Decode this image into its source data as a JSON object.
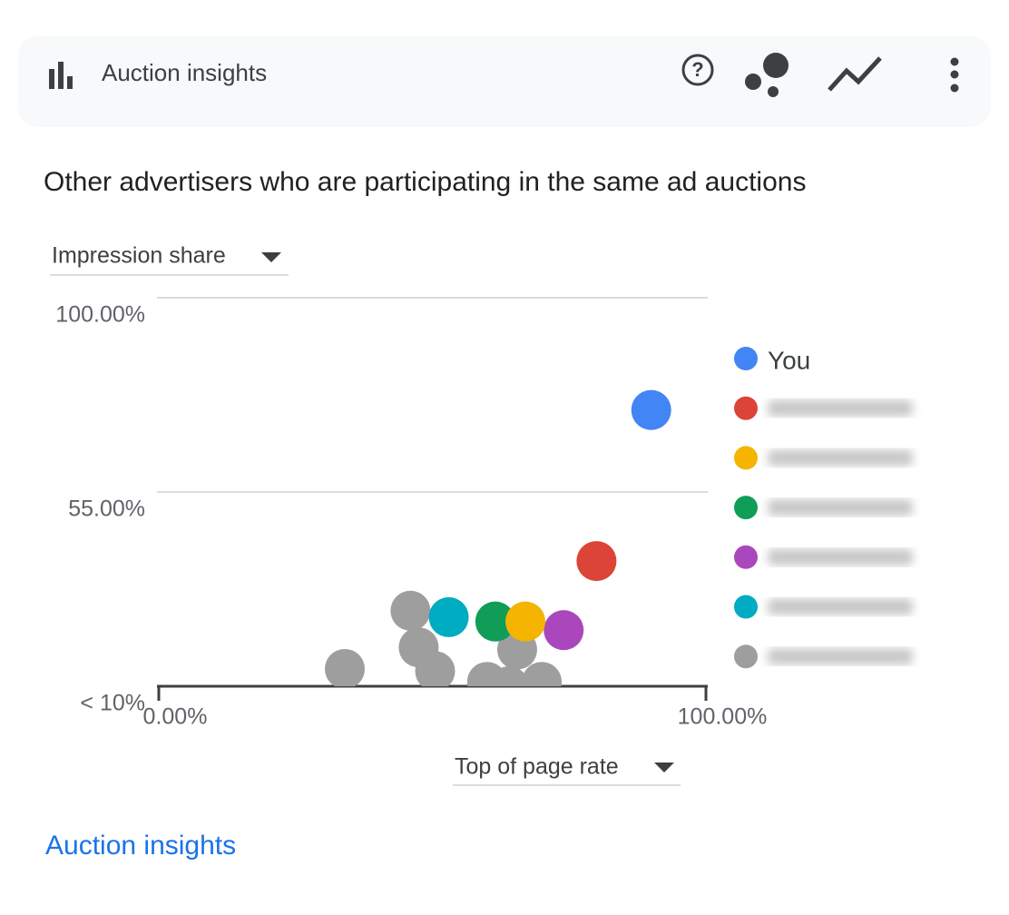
{
  "header": {
    "title": "Auction insights"
  },
  "link": "Auction insights",
  "chart_data": {
    "type": "scatter",
    "title": "Other advertisers who are participating in the same ad auctions",
    "y_label": "Impression share",
    "x_label": "Top of page rate",
    "xlim": [
      0,
      100
    ],
    "ylim": [
      10,
      100
    ],
    "xticks": [
      {
        "value": 0,
        "label": "0.00%"
      },
      {
        "value": 100,
        "label": "100.00%"
      }
    ],
    "yticks": [
      {
        "value": 10,
        "label": "< 10%"
      },
      {
        "value": 55,
        "label": "55.00%"
      },
      {
        "value": 100,
        "label": "100.00%"
      }
    ],
    "grid": true,
    "legend": "right",
    "series": [
      {
        "name": "You",
        "color": "#4285f4",
        "x": [
          90
        ],
        "values": [
          74
        ]
      },
      {
        "color": "#db4437",
        "x": [
          80
        ],
        "values": [
          39
        ]
      },
      {
        "color": "#f4b400",
        "x": [
          67
        ],
        "values": [
          25
        ]
      },
      {
        "color": "#0f9d58",
        "x": [
          61.5
        ],
        "values": [
          25
        ]
      },
      {
        "color": "#ab47bc",
        "x": [
          74
        ],
        "values": [
          23
        ]
      },
      {
        "color": "#00acc1",
        "x": [
          53
        ],
        "values": [
          26
        ]
      },
      {
        "color": "#9e9e9e",
        "x": [
          34,
          46,
          47.5,
          50.5,
          60,
          65.5,
          70,
          64
        ],
        "values": [
          14,
          27.5,
          19,
          13.5,
          11,
          18.5,
          11,
          10
        ]
      }
    ]
  }
}
